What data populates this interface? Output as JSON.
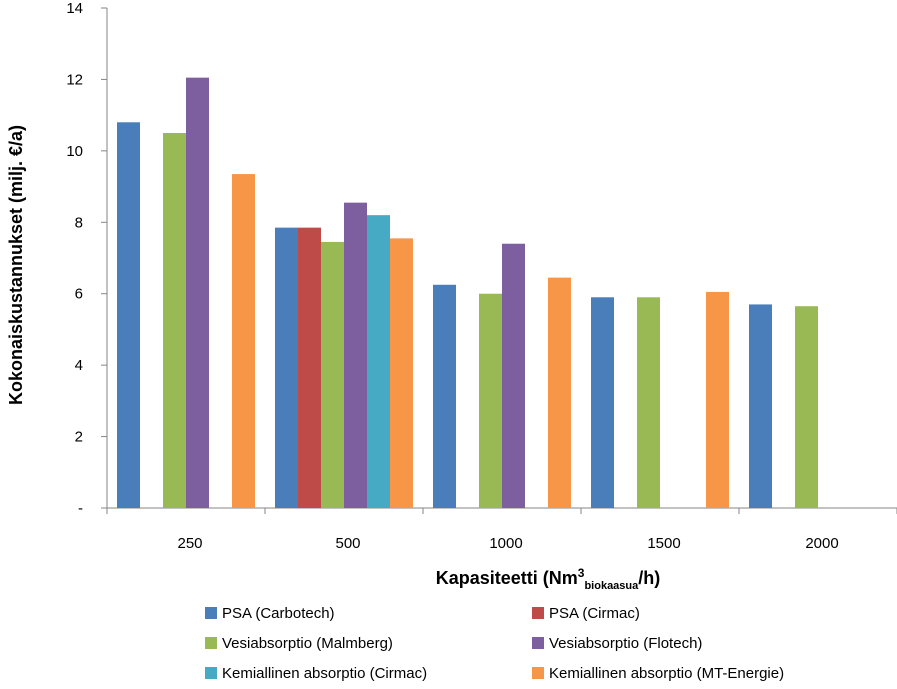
{
  "chart_data": {
    "type": "bar",
    "categories": [
      "250",
      "500",
      "1000",
      "1500",
      "2000"
    ],
    "series": [
      {
        "name": "PSA (Carbotech)",
        "color": "#4a7ebb",
        "values": [
          10.8,
          7.85,
          6.25,
          5.9,
          5.7
        ]
      },
      {
        "name": "PSA (Cirmac)",
        "color": "#be4b48",
        "values": [
          null,
          7.85,
          null,
          null,
          null
        ]
      },
      {
        "name": "Vesiabsorptio (Malmberg)",
        "color": "#98b954",
        "values": [
          10.5,
          7.45,
          6.0,
          5.9,
          5.65
        ]
      },
      {
        "name": "Vesiabsorptio (Flotech)",
        "color": "#7d5fa0",
        "values": [
          12.05,
          8.55,
          7.4,
          null,
          null
        ]
      },
      {
        "name": "Kemiallinen absorptio (Cirmac)",
        "color": "#46aac5",
        "values": [
          null,
          8.2,
          null,
          null,
          null
        ]
      },
      {
        "name": "Kemiallinen absorptio (MT-Energie)",
        "color": "#f79646",
        "values": [
          9.35,
          7.55,
          6.45,
          6.05,
          null
        ]
      }
    ],
    "ylabel": "Kokonaiskustannukset (milj. €/a)",
    "xlabel_main": "Kapasiteetti (Nm",
    "xlabel_sup": "3",
    "xlabel_sub": "biokaasua",
    "xlabel_end": "/h)",
    "ylim": [
      0,
      14
    ],
    "yticks": [
      0,
      2,
      4,
      6,
      8,
      10,
      12,
      14
    ],
    "ytick_labels": [
      "-",
      "2",
      "4",
      "6",
      "8",
      "10",
      "12",
      "14"
    ],
    "grid": false,
    "legend_position": "bottom"
  }
}
